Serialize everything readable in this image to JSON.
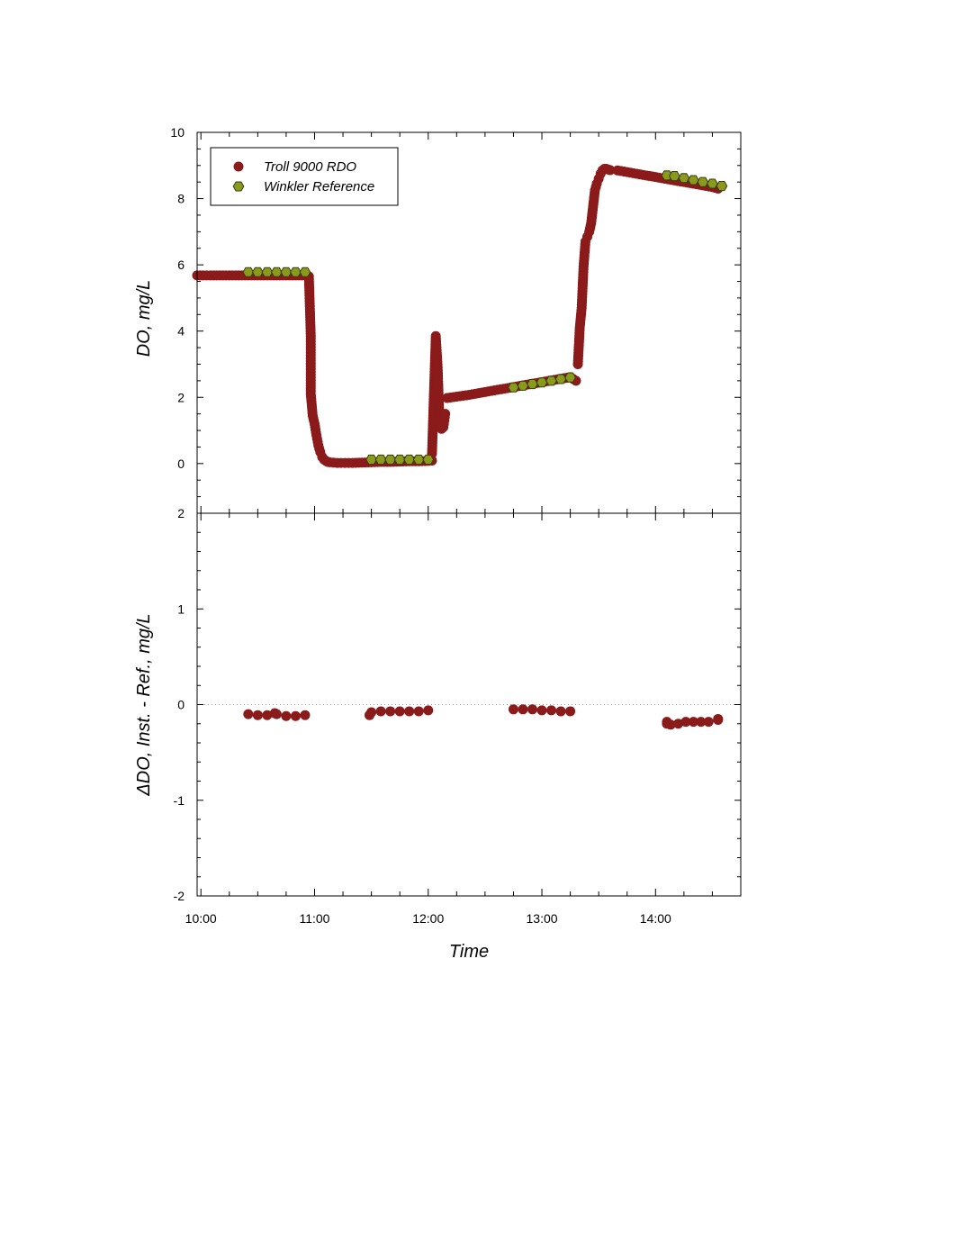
{
  "chart_data": [
    {
      "type": "scatter",
      "title": "",
      "xlabel": "Time",
      "ylabel": "DO, mg/L",
      "xlim": [
        "09:58",
        "14:45"
      ],
      "ylim": [
        -1.5,
        10
      ],
      "yticks": [
        0,
        2,
        4,
        6,
        8,
        10
      ],
      "xticks": [
        "10:00",
        "11:00",
        "12:00",
        "13:00",
        "14:00"
      ],
      "x_tick_labels_shown": false,
      "grid": false,
      "legend": {
        "placement": "top-left",
        "entries": [
          "Troll 9000 RDO",
          "Winkler Reference"
        ]
      },
      "colors": {
        "troll": "#8b1a1a",
        "winkler": "#8a9a1c",
        "winkler_edge": "#3a3a10"
      },
      "series": [
        {
          "name": "Troll 9000 RDO",
          "marker": "circle",
          "segments": [
            {
              "x": [
                "09:58",
                "10:01",
                "10:05",
                "10:10",
                "10:15",
                "10:20",
                "10:25",
                "10:30",
                "10:35",
                "10:40",
                "10:45",
                "10:50",
                "10:55"
              ],
              "y": [
                5.68,
                5.68,
                5.68,
                5.68,
                5.68,
                5.68,
                5.68,
                5.68,
                5.68,
                5.68,
                5.68,
                5.68,
                5.68
              ]
            },
            {
              "x": [
                "10:57",
                "10:58",
                "10:58",
                "10:59",
                "11:00",
                "11:01",
                "11:02",
                "11:03",
                "11:04",
                "11:05",
                "11:06",
                "11:07",
                "11:08",
                "11:10",
                "11:12",
                "11:14",
                "11:16",
                "11:18",
                "11:20",
                "11:25",
                "11:30",
                "11:35",
                "11:40",
                "11:45",
                "11:50",
                "11:55",
                "12:00",
                "12:02"
              ],
              "y": [
                5.65,
                3.85,
                2.1,
                1.45,
                1.2,
                0.85,
                0.55,
                0.35,
                0.2,
                0.12,
                0.08,
                0.05,
                0.04,
                0.03,
                0.02,
                0.02,
                0.02,
                0.02,
                0.02,
                0.03,
                0.04,
                0.05,
                0.05,
                0.06,
                0.07,
                0.07,
                0.08,
                0.09
              ]
            },
            {
              "x": [
                "12:02",
                "12:03",
                "12:04",
                "12:05",
                "12:06",
                "12:07",
                "12:08",
                "12:09"
              ],
              "y": [
                0.3,
                2.1,
                3.85,
                2.9,
                1.2,
                1.05,
                1.1,
                1.5
              ]
            },
            {
              "x": [
                "12:10",
                "12:15",
                "12:20",
                "12:25",
                "12:30",
                "12:35",
                "12:40",
                "12:45",
                "12:50",
                "12:55",
                "13:00",
                "13:05",
                "13:10",
                "13:15",
                "13:18"
              ],
              "y": [
                1.98,
                2.02,
                2.06,
                2.11,
                2.16,
                2.21,
                2.26,
                2.31,
                2.36,
                2.41,
                2.46,
                2.51,
                2.56,
                2.61,
                2.5
              ]
            },
            {
              "x": [
                "13:19",
                "13:20",
                "13:21",
                "13:22",
                "13:23",
                "13:24",
                "13:25",
                "13:26",
                "13:27",
                "13:28",
                "13:29",
                "13:30",
                "13:31",
                "13:32",
                "13:33",
                "13:34",
                "13:35",
                "13:36"
              ],
              "y": [
                3.0,
                4.1,
                4.7,
                5.95,
                6.7,
                6.85,
                7.0,
                7.25,
                7.75,
                8.25,
                8.45,
                8.6,
                8.75,
                8.85,
                8.9,
                8.9,
                8.88,
                8.86
              ]
            },
            {
              "x": [
                "13:40",
                "13:45",
                "13:50",
                "13:55",
                "14:00",
                "14:05",
                "14:10",
                "14:15",
                "14:20",
                "14:25",
                "14:30",
                "14:33"
              ],
              "y": [
                8.85,
                8.8,
                8.75,
                8.7,
                8.65,
                8.6,
                8.55,
                8.5,
                8.45,
                8.4,
                8.35,
                8.3
              ]
            }
          ]
        },
        {
          "name": "Winkler Reference",
          "marker": "hexagon",
          "x": [
            "10:25",
            "10:30",
            "10:35",
            "10:40",
            "10:45",
            "10:50",
            "10:55",
            "11:30",
            "11:35",
            "11:40",
            "11:45",
            "11:50",
            "11:55",
            "12:00",
            "12:45",
            "12:50",
            "12:55",
            "13:00",
            "13:05",
            "13:10",
            "13:15",
            "14:06",
            "14:10",
            "14:15",
            "14:20",
            "14:25",
            "14:30",
            "14:35"
          ],
          "y": [
            5.78,
            5.78,
            5.78,
            5.78,
            5.78,
            5.78,
            5.78,
            0.12,
            0.12,
            0.12,
            0.12,
            0.12,
            0.12,
            0.12,
            2.3,
            2.35,
            2.4,
            2.45,
            2.5,
            2.55,
            2.6,
            8.7,
            8.68,
            8.62,
            8.56,
            8.5,
            8.45,
            8.38
          ]
        }
      ]
    },
    {
      "type": "scatter",
      "title": "",
      "xlabel": "Time",
      "ylabel": "ΔDO, Inst. - Ref., mg/L",
      "xlim": [
        "09:58",
        "14:45"
      ],
      "ylim": [
        -2,
        2
      ],
      "yticks": [
        -2,
        -1,
        0,
        1,
        2
      ],
      "xticks": [
        "10:00",
        "11:00",
        "12:00",
        "13:00",
        "14:00"
      ],
      "zero_reference_line": true,
      "grid": false,
      "colors": {
        "diff": "#8b1a1a",
        "zero_line": "#999999"
      },
      "series": [
        {
          "name": "",
          "marker": "circle",
          "x": [
            "10:25",
            "10:30",
            "10:35",
            "10:39",
            "10:40",
            "10:45",
            "10:50",
            "10:55",
            "11:29",
            "11:30",
            "11:35",
            "11:40",
            "11:45",
            "11:50",
            "11:55",
            "12:00",
            "12:45",
            "12:50",
            "12:55",
            "13:00",
            "13:05",
            "13:10",
            "13:15",
            "14:06",
            "14:06",
            "14:08",
            "14:12",
            "14:16",
            "14:20",
            "14:24",
            "14:28",
            "14:33",
            "14:33"
          ],
          "y": [
            -0.1,
            -0.11,
            -0.11,
            -0.09,
            -0.1,
            -0.12,
            -0.12,
            -0.11,
            -0.11,
            -0.08,
            -0.07,
            -0.07,
            -0.07,
            -0.07,
            -0.07,
            -0.06,
            -0.05,
            -0.05,
            -0.05,
            -0.06,
            -0.06,
            -0.07,
            -0.07,
            -0.18,
            -0.2,
            -0.21,
            -0.2,
            -0.18,
            -0.18,
            -0.18,
            -0.18,
            -0.16,
            -0.15
          ]
        }
      ]
    }
  ]
}
